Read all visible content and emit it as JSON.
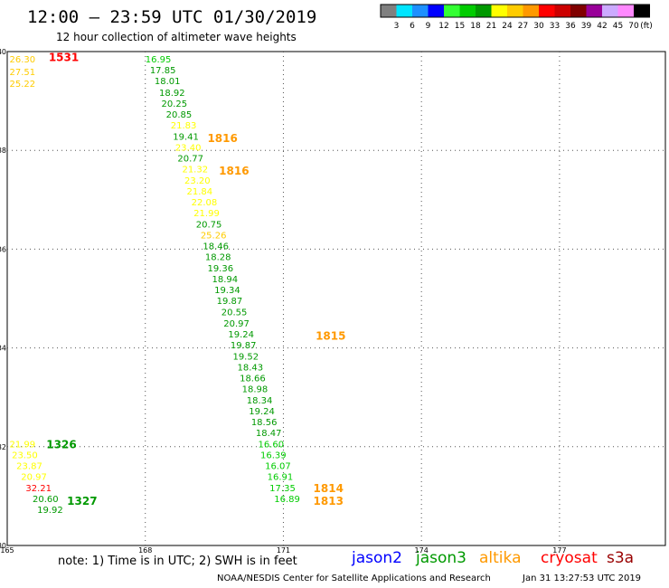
{
  "title": "12:00 – 23:59 UTC 01/30/2019",
  "subtitle": "12 hour collection of altimeter wave heights",
  "colorbar": {
    "unit": "(ft)",
    "colors": [
      "#808080",
      "#00e5ff",
      "#1e90ff",
      "#0000ff",
      "#33ff33",
      "#00cc00",
      "#009900",
      "#ffff00",
      "#ffcc00",
      "#ff9900",
      "#ff0000",
      "#cc0000",
      "#800000",
      "#990099",
      "#ccaaff",
      "#ff88ff",
      "#000000"
    ],
    "labels": [
      "3",
      "6",
      "9",
      "12",
      "15",
      "18",
      "21",
      "24",
      "27",
      "30",
      "33",
      "36",
      "39",
      "42",
      "45",
      "70"
    ]
  },
  "note": "note:  1) Time is in UTC; 2) SWH is in feet",
  "satellites": [
    {
      "name": "jason2",
      "color": "#0000ff"
    },
    {
      "name": "jason3",
      "color": "#009900"
    },
    {
      "name": "altika",
      "color": "#ff9900"
    },
    {
      "name": "cryosat",
      "color": "#ff0000"
    },
    {
      "name": "s3a",
      "color": "#990000"
    }
  ],
  "credit": "NOAA/NESDIS Center for Satellite Applications and Research",
  "timestamp": "Jan 31 13:27:53 UTC 2019",
  "chart_data": {
    "type": "scatter",
    "title": "12:00 – 23:59 UTC 01/30/2019",
    "xlim": [
      165,
      179.3
    ],
    "ylim": [
      30,
      40
    ],
    "x_ticks": [
      "165",
      "168",
      "171",
      "174",
      "177"
    ],
    "y_ticks": [
      "30",
      "32",
      "34",
      "36",
      "38",
      "40"
    ],
    "grid": true,
    "points": [
      {
        "x": 165.05,
        "y": 39.85,
        "label": "26.30",
        "color": "#ffcc00"
      },
      {
        "x": 165.05,
        "y": 39.6,
        "label": "27.51",
        "color": "#ffcc00"
      },
      {
        "x": 165.05,
        "y": 39.36,
        "label": "25.22",
        "color": "#ffcc00"
      },
      {
        "x": 168.0,
        "y": 39.85,
        "label": "16.95",
        "color": "#00cc00"
      },
      {
        "x": 168.1,
        "y": 39.63,
        "label": "17.85",
        "color": "#009900"
      },
      {
        "x": 168.2,
        "y": 39.41,
        "label": "18.01",
        "color": "#009900"
      },
      {
        "x": 168.3,
        "y": 39.18,
        "label": "18.92",
        "color": "#009900"
      },
      {
        "x": 168.35,
        "y": 38.96,
        "label": "20.25",
        "color": "#009900"
      },
      {
        "x": 168.45,
        "y": 38.74,
        "label": "20.85",
        "color": "#009900"
      },
      {
        "x": 168.55,
        "y": 38.52,
        "label": "21.83",
        "color": "#ffff00"
      },
      {
        "x": 168.6,
        "y": 38.29,
        "label": "19.41",
        "color": "#009900"
      },
      {
        "x": 168.65,
        "y": 38.07,
        "label": "23.40",
        "color": "#ffff00"
      },
      {
        "x": 168.7,
        "y": 37.85,
        "label": "20.77",
        "color": "#009900"
      },
      {
        "x": 168.8,
        "y": 37.63,
        "label": "21.32",
        "color": "#ffff00"
      },
      {
        "x": 168.85,
        "y": 37.4,
        "label": "23.20",
        "color": "#ffff00"
      },
      {
        "x": 168.9,
        "y": 37.18,
        "label": "21.84",
        "color": "#ffff00"
      },
      {
        "x": 169.0,
        "y": 36.96,
        "label": "22.08",
        "color": "#ffff00"
      },
      {
        "x": 169.05,
        "y": 36.74,
        "label": "21.99",
        "color": "#ffff00"
      },
      {
        "x": 169.1,
        "y": 36.51,
        "label": "20.75",
        "color": "#009900"
      },
      {
        "x": 169.2,
        "y": 36.29,
        "label": "25.26",
        "color": "#ffcc00"
      },
      {
        "x": 169.25,
        "y": 36.07,
        "label": "18.46",
        "color": "#009900"
      },
      {
        "x": 169.3,
        "y": 35.85,
        "label": "18.28",
        "color": "#009900"
      },
      {
        "x": 169.35,
        "y": 35.62,
        "label": "19.36",
        "color": "#009900"
      },
      {
        "x": 169.45,
        "y": 35.4,
        "label": "18.94",
        "color": "#009900"
      },
      {
        "x": 169.5,
        "y": 35.18,
        "label": "19.34",
        "color": "#009900"
      },
      {
        "x": 169.55,
        "y": 34.96,
        "label": "19.87",
        "color": "#009900"
      },
      {
        "x": 169.65,
        "y": 34.73,
        "label": "20.55",
        "color": "#009900"
      },
      {
        "x": 169.7,
        "y": 34.51,
        "label": "20.97",
        "color": "#009900"
      },
      {
        "x": 169.8,
        "y": 34.29,
        "label": "19.24",
        "color": "#009900"
      },
      {
        "x": 169.85,
        "y": 34.07,
        "label": "19.87",
        "color": "#009900"
      },
      {
        "x": 169.9,
        "y": 33.84,
        "label": "19.52",
        "color": "#009900"
      },
      {
        "x": 170.0,
        "y": 33.62,
        "label": "18.43",
        "color": "#009900"
      },
      {
        "x": 170.05,
        "y": 33.4,
        "label": "18.66",
        "color": "#009900"
      },
      {
        "x": 170.1,
        "y": 33.18,
        "label": "18.98",
        "color": "#009900"
      },
      {
        "x": 170.2,
        "y": 32.95,
        "label": "18.34",
        "color": "#009900"
      },
      {
        "x": 170.25,
        "y": 32.73,
        "label": "19.24",
        "color": "#009900"
      },
      {
        "x": 170.3,
        "y": 32.51,
        "label": "18.56",
        "color": "#009900"
      },
      {
        "x": 170.4,
        "y": 32.29,
        "label": "18.47",
        "color": "#009900"
      },
      {
        "x": 170.45,
        "y": 32.06,
        "label": "16.60",
        "color": "#00cc00"
      },
      {
        "x": 170.5,
        "y": 31.84,
        "label": "16.39",
        "color": "#00cc00"
      },
      {
        "x": 170.6,
        "y": 31.62,
        "label": "16.07",
        "color": "#00cc00"
      },
      {
        "x": 170.65,
        "y": 31.4,
        "label": "16.91",
        "color": "#00cc00"
      },
      {
        "x": 170.7,
        "y": 31.17,
        "label": "17.35",
        "color": "#00cc00"
      },
      {
        "x": 170.8,
        "y": 30.95,
        "label": "16.89",
        "color": "#00cc00"
      },
      {
        "x": 165.05,
        "y": 32.06,
        "label": "21.99",
        "color": "#ffff00"
      },
      {
        "x": 165.1,
        "y": 31.84,
        "label": "23.50",
        "color": "#ffff00"
      },
      {
        "x": 165.2,
        "y": 31.62,
        "label": "23.87",
        "color": "#ffff00"
      },
      {
        "x": 165.3,
        "y": 31.4,
        "label": "20.97",
        "color": "#ffff00"
      },
      {
        "x": 165.4,
        "y": 31.17,
        "label": "32.21",
        "color": "#ff0000"
      },
      {
        "x": 165.55,
        "y": 30.95,
        "label": "20.60",
        "color": "#009900"
      },
      {
        "x": 165.65,
        "y": 30.73,
        "label": "19.92",
        "color": "#009900"
      }
    ],
    "time_labels": [
      {
        "x": 165.9,
        "y": 39.9,
        "text": "1531",
        "color": "#ff0000"
      },
      {
        "x": 169.35,
        "y": 38.26,
        "text": "1816",
        "color": "#ff9900"
      },
      {
        "x": 169.6,
        "y": 37.6,
        "text": "1816",
        "color": "#ff9900"
      },
      {
        "x": 171.7,
        "y": 34.26,
        "text": "1815",
        "color": "#ff9900"
      },
      {
        "x": 165.85,
        "y": 32.06,
        "text": "1326",
        "color": "#009900"
      },
      {
        "x": 166.3,
        "y": 30.92,
        "text": "1327",
        "color": "#009900"
      },
      {
        "x": 171.65,
        "y": 31.17,
        "text": "1814",
        "color": "#ff9900"
      },
      {
        "x": 171.65,
        "y": 30.92,
        "text": "1813",
        "color": "#ff9900"
      }
    ]
  }
}
